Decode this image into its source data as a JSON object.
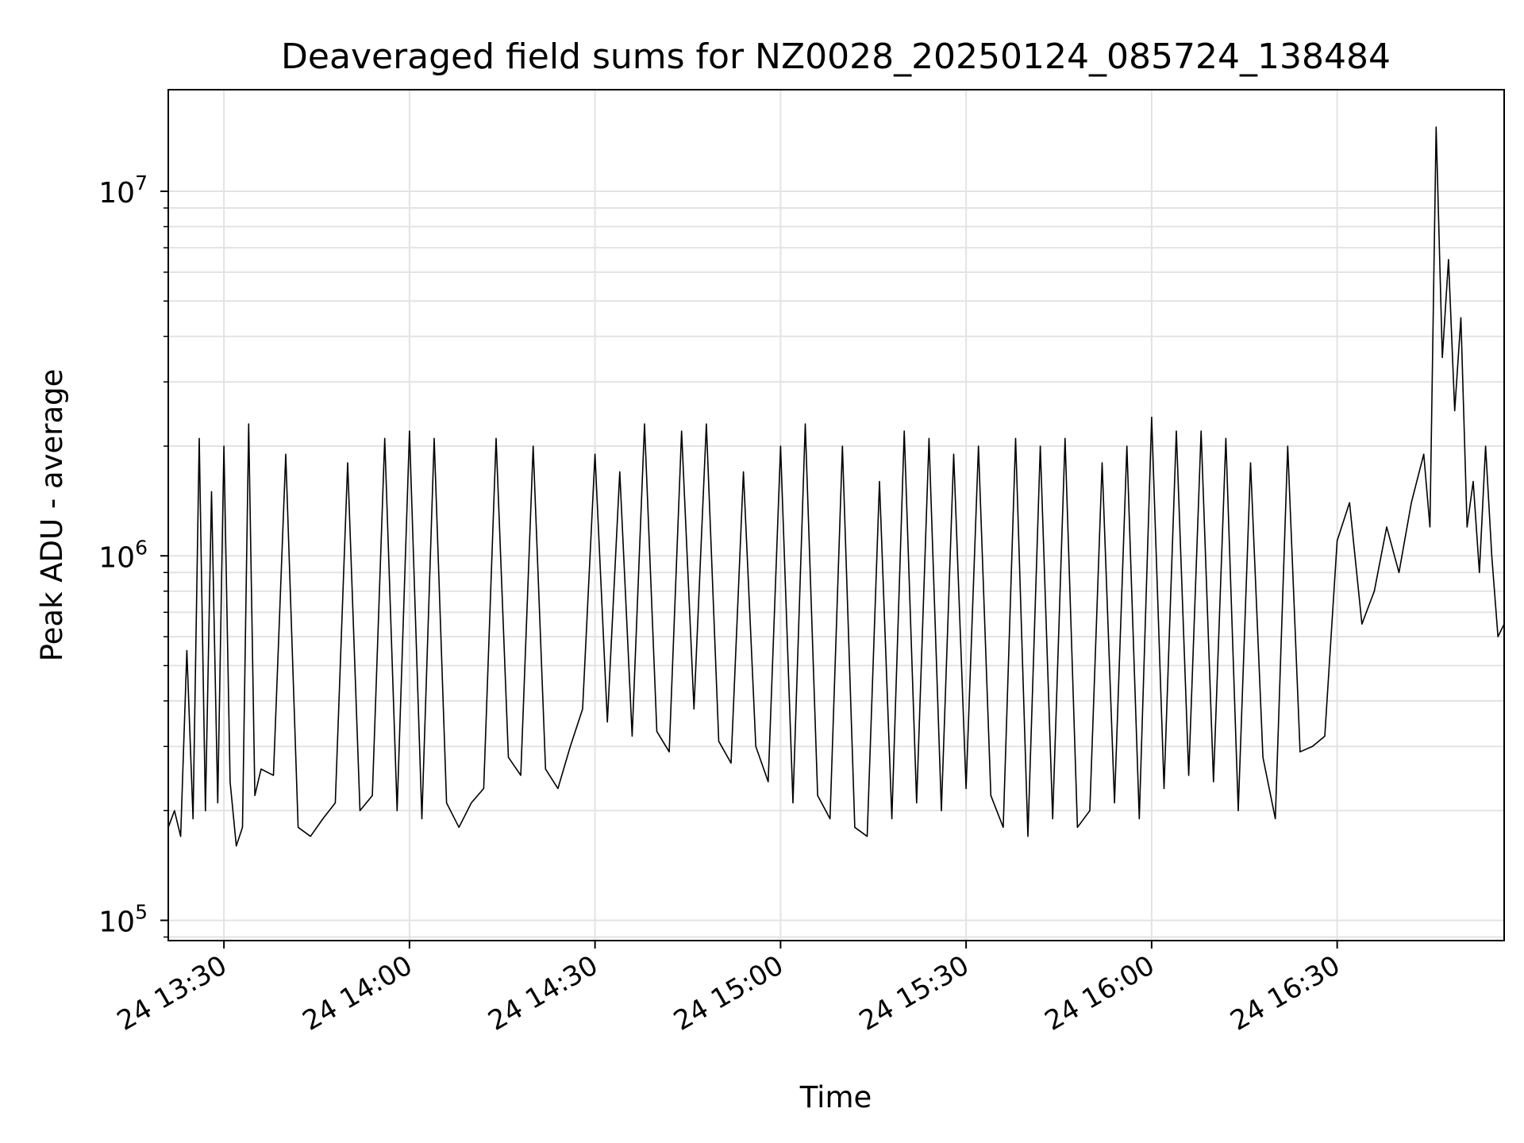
{
  "chart_data": {
    "type": "line",
    "title": "Deaveraged field sums for NZ0028_20250124_085724_138484",
    "xlabel": "Time",
    "ylabel": "Peak ADU - average",
    "y_scale": "log",
    "ylim": [
      88000,
      19000000
    ],
    "x_range": [
      "2025-01-24 13:21",
      "2025-01-24 16:57"
    ],
    "x_ticks": [
      {
        "time": "2025-01-24 13:30",
        "label": "24 13:30"
      },
      {
        "time": "2025-01-24 14:00",
        "label": "24 14:00"
      },
      {
        "time": "2025-01-24 14:30",
        "label": "24 14:30"
      },
      {
        "time": "2025-01-24 15:00",
        "label": "24 15:00"
      },
      {
        "time": "2025-01-24 15:30",
        "label": "24 15:30"
      },
      {
        "time": "2025-01-24 16:00",
        "label": "24 16:00"
      },
      {
        "time": "2025-01-24 16:30",
        "label": "24 16:30"
      }
    ],
    "y_ticks": [
      {
        "value": 100000,
        "base": "10",
        "exp": "5"
      },
      {
        "value": 1000000,
        "base": "10",
        "exp": "6"
      },
      {
        "value": 10000000,
        "base": "10",
        "exp": "7"
      }
    ],
    "grid": true,
    "line_color": "#000000",
    "series": [
      {
        "x": [
          "2025-01-24 13:21",
          "2025-01-24 13:22",
          "2025-01-24 13:23",
          "2025-01-24 13:24",
          "2025-01-24 13:25",
          "2025-01-24 13:26",
          "2025-01-24 13:27",
          "2025-01-24 13:28",
          "2025-01-24 13:29",
          "2025-01-24 13:30",
          "2025-01-24 13:31",
          "2025-01-24 13:32",
          "2025-01-24 13:33",
          "2025-01-24 13:34",
          "2025-01-24 13:35",
          "2025-01-24 13:36",
          "2025-01-24 13:38",
          "2025-01-24 13:40",
          "2025-01-24 13:42",
          "2025-01-24 13:44",
          "2025-01-24 13:46",
          "2025-01-24 13:48",
          "2025-01-24 13:50",
          "2025-01-24 13:52",
          "2025-01-24 13:54",
          "2025-01-24 13:56",
          "2025-01-24 13:58",
          "2025-01-24 14:00",
          "2025-01-24 14:02",
          "2025-01-24 14:04",
          "2025-01-24 14:06",
          "2025-01-24 14:08",
          "2025-01-24 14:10",
          "2025-01-24 14:12",
          "2025-01-24 14:14",
          "2025-01-24 14:16",
          "2025-01-24 14:18",
          "2025-01-24 14:20",
          "2025-01-24 14:22",
          "2025-01-24 14:24",
          "2025-01-24 14:26",
          "2025-01-24 14:28",
          "2025-01-24 14:30",
          "2025-01-24 14:32",
          "2025-01-24 14:34",
          "2025-01-24 14:36",
          "2025-01-24 14:38",
          "2025-01-24 14:40",
          "2025-01-24 14:42",
          "2025-01-24 14:44",
          "2025-01-24 14:46",
          "2025-01-24 14:48",
          "2025-01-24 14:50",
          "2025-01-24 14:52",
          "2025-01-24 14:54",
          "2025-01-24 14:56",
          "2025-01-24 14:58",
          "2025-01-24 15:00",
          "2025-01-24 15:02",
          "2025-01-24 15:04",
          "2025-01-24 15:06",
          "2025-01-24 15:08",
          "2025-01-24 15:10",
          "2025-01-24 15:12",
          "2025-01-24 15:14",
          "2025-01-24 15:16",
          "2025-01-24 15:18",
          "2025-01-24 15:20",
          "2025-01-24 15:22",
          "2025-01-24 15:24",
          "2025-01-24 15:26",
          "2025-01-24 15:28",
          "2025-01-24 15:30",
          "2025-01-24 15:32",
          "2025-01-24 15:34",
          "2025-01-24 15:36",
          "2025-01-24 15:38",
          "2025-01-24 15:40",
          "2025-01-24 15:42",
          "2025-01-24 15:44",
          "2025-01-24 15:46",
          "2025-01-24 15:48",
          "2025-01-24 15:50",
          "2025-01-24 15:52",
          "2025-01-24 15:54",
          "2025-01-24 15:56",
          "2025-01-24 15:58",
          "2025-01-24 16:00",
          "2025-01-24 16:02",
          "2025-01-24 16:04",
          "2025-01-24 16:06",
          "2025-01-24 16:08",
          "2025-01-24 16:10",
          "2025-01-24 16:12",
          "2025-01-24 16:14",
          "2025-01-24 16:16",
          "2025-01-24 16:18",
          "2025-01-24 16:20",
          "2025-01-24 16:22",
          "2025-01-24 16:24",
          "2025-01-24 16:26",
          "2025-01-24 16:28",
          "2025-01-24 16:30",
          "2025-01-24 16:32",
          "2025-01-24 16:34",
          "2025-01-24 16:36",
          "2025-01-24 16:38",
          "2025-01-24 16:40",
          "2025-01-24 16:42",
          "2025-01-24 16:44",
          "2025-01-24 16:45",
          "2025-01-24 16:46",
          "2025-01-24 16:47",
          "2025-01-24 16:48",
          "2025-01-24 16:49",
          "2025-01-24 16:50",
          "2025-01-24 16:51",
          "2025-01-24 16:52",
          "2025-01-24 16:53",
          "2025-01-24 16:54",
          "2025-01-24 16:55",
          "2025-01-24 16:56",
          "2025-01-24 16:57"
        ],
        "y": [
          180000,
          200000,
          170000,
          550000,
          190000,
          2100000,
          200000,
          1500000,
          210000,
          2000000,
          240000,
          160000,
          180000,
          2300000,
          220000,
          260000,
          250000,
          1900000,
          180000,
          170000,
          190000,
          210000,
          1800000,
          200000,
          220000,
          2100000,
          200000,
          2200000,
          190000,
          2100000,
          210000,
          180000,
          210000,
          230000,
          2100000,
          280000,
          250000,
          2000000,
          260000,
          230000,
          300000,
          380000,
          1900000,
          350000,
          1700000,
          320000,
          2300000,
          330000,
          290000,
          2200000,
          380000,
          2300000,
          310000,
          270000,
          1700000,
          300000,
          240000,
          2000000,
          210000,
          2300000,
          220000,
          190000,
          2000000,
          180000,
          170000,
          1600000,
          190000,
          2200000,
          210000,
          2100000,
          200000,
          1900000,
          230000,
          2000000,
          220000,
          180000,
          2100000,
          170000,
          2000000,
          190000,
          2100000,
          180000,
          200000,
          1800000,
          210000,
          2000000,
          190000,
          2400000,
          230000,
          2200000,
          250000,
          2200000,
          240000,
          2100000,
          200000,
          1800000,
          280000,
          190000,
          2000000,
          290000,
          300000,
          320000,
          1100000,
          1400000,
          650000,
          800000,
          1200000,
          900000,
          1400000,
          1900000,
          1200000,
          15000000,
          3500000,
          6500000,
          2500000,
          4500000,
          1200000,
          1600000,
          900000,
          2000000,
          1000000,
          600000,
          650000
        ]
      }
    ]
  }
}
